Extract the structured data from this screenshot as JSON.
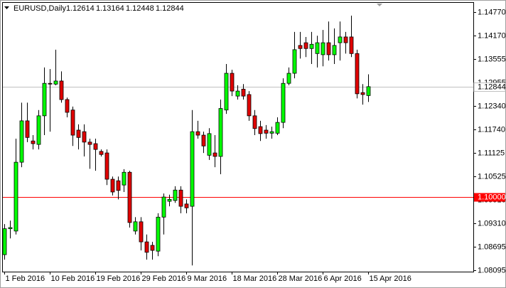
{
  "chart_data": {
    "type": "candlestick",
    "title": "EURUSD,Daily",
    "x": [
      "1 Feb 2016",
      null,
      null,
      null,
      null,
      null,
      null,
      null,
      "10 Feb 2016",
      null,
      null,
      null,
      null,
      null,
      null,
      null,
      "19 Feb 2016",
      null,
      null,
      null,
      null,
      null,
      null,
      null,
      "29 Feb 2016",
      null,
      null,
      null,
      null,
      null,
      null,
      null,
      "9 Mar 2016",
      null,
      null,
      null,
      null,
      null,
      null,
      null,
      "18 Mar 2016",
      null,
      null,
      null,
      null,
      null,
      null,
      null,
      "28 Mar 2016",
      null,
      null,
      null,
      null,
      null,
      null,
      null,
      "6 Apr 2016",
      null,
      null,
      null,
      null,
      null,
      null,
      null,
      "15 Apr 2016"
    ],
    "open": [
      1.085,
      1.0917,
      1.0911,
      1.1089,
      1.1196,
      1.1144,
      1.1135,
      1.1209,
      1.1293,
      1.1291,
      1.1299,
      1.1251,
      1.1224,
      1.1172,
      1.1168,
      1.1141,
      1.1137,
      1.1117,
      1.1113,
      1.1045,
      1.1041,
      1.103,
      1.1063,
      1.0911,
      1.0935,
      1.0883,
      1.0874,
      1.0859,
      1.0947,
      1.0988,
      1.099,
      1.1017,
      1.0981,
      1.0975,
      1.1168,
      1.1159,
      1.1107,
      1.1113,
      1.1104,
      1.1224,
      1.1319,
      1.126,
      1.1278,
      1.1264,
      1.1209,
      1.1181,
      1.1172,
      1.1164,
      1.1164,
      1.1192,
      1.1293,
      1.1319,
      1.1391,
      1.1398,
      1.1383,
      1.137,
      1.1367,
      1.1398,
      1.1367,
      1.1398,
      1.1413,
      1.1413,
      1.137,
      1.1269,
      1.12614
    ],
    "high": [
      1.0929,
      1.0938,
      1.115,
      1.1243,
      1.1243,
      1.1159,
      1.1224,
      1.1334,
      1.133,
      1.138,
      1.1324,
      1.1256,
      1.1233,
      1.1187,
      1.1187,
      1.115,
      1.115,
      1.1122,
      1.1122,
      1.1052,
      1.1052,
      1.1071,
      1.1067,
      1.0947,
      1.0947,
      1.0902,
      1.0883,
      1.0957,
      1.1008,
      1.1005,
      1.1027,
      1.1027,
      1.0993,
      1.1224,
      1.1196,
      1.1168,
      1.1177,
      1.1159,
      1.1251,
      1.1343,
      1.1328,
      1.1288,
      1.1291,
      1.1273,
      1.1224,
      1.1196,
      1.1185,
      1.1181,
      1.1205,
      1.1306,
      1.1334,
      1.1426,
      1.1426,
      1.1413,
      1.1426,
      1.1416,
      1.1431,
      1.1453,
      1.1435,
      1.1453,
      1.1426,
      1.1468,
      1.138,
      1.1291,
      1.13164
    ],
    "low": [
      1.0837,
      1.0892,
      1.0902,
      1.1076,
      1.1141,
      1.1122,
      1.1122,
      1.1159,
      1.1168,
      1.1288,
      1.1243,
      1.1205,
      1.1131,
      1.1122,
      1.1104,
      1.1072,
      1.1067,
      1.1104,
      1.103,
      1.1003,
      1.0993,
      1.1012,
      1.092,
      1.0902,
      1.0861,
      1.0837,
      1.0837,
      1.0846,
      1.0902,
      1.0975,
      1.0984,
      1.0957,
      1.0957,
      1.0822,
      1.115,
      1.1113,
      1.1095,
      1.1076,
      1.1058,
      1.1214,
      1.126,
      1.1251,
      1.1251,
      1.1196,
      1.1159,
      1.1144,
      1.115,
      1.115,
      1.1159,
      1.1177,
      1.1288,
      1.1306,
      1.1357,
      1.1361,
      1.1343,
      1.1334,
      1.1337,
      1.1352,
      1.1343,
      1.1352,
      1.137,
      1.1361,
      1.1254,
      1.1238,
      1.12448
    ],
    "close": [
      1.0917,
      1.092,
      1.1089,
      1.1196,
      1.1153,
      1.1137,
      1.1209,
      1.1293,
      1.1291,
      1.1299,
      1.1251,
      1.1218,
      1.1159,
      1.1153,
      1.1141,
      1.1135,
      1.1122,
      1.1109,
      1.1045,
      1.1012,
      1.1016,
      1.1063,
      1.0933,
      1.0935,
      1.0883,
      1.0856,
      1.0861,
      1.0947,
      1.0999,
      1.0993,
      1.1017,
      1.0975,
      1.0971,
      1.1168,
      1.1159,
      1.1131,
      1.1163,
      1.1104,
      1.1228,
      1.1319,
      1.1273,
      1.1273,
      1.126,
      1.1209,
      1.1176,
      1.1163,
      1.1164,
      1.1168,
      1.1192,
      1.1293,
      1.1319,
      1.138,
      1.1383,
      1.1383,
      1.1394,
      1.1398,
      1.1398,
      1.1367,
      1.1391,
      1.1413,
      1.1398,
      1.137,
      1.1266,
      1.1264,
      1.12844
    ],
    "up_color": "#00ff00",
    "down_color": "#e00000",
    "ylim": [
      1.0806,
      1.1503
    ],
    "yticks": [
      {
        "value": 1.1477,
        "label": "1.14770"
      },
      {
        "value": 1.1417,
        "label": "1.14170"
      },
      1.13555,
      1.12955,
      {
        "value": 1.1234,
        "label": "1.12340"
      },
      {
        "value": 1.1174,
        "label": "1.11740"
      },
      1.11125,
      1.10525,
      {
        "value": 1.0991,
        "label": "1.09910"
      },
      {
        "value": 1.0931,
        "label": "1.09310"
      },
      1.08695,
      1.08095
    ],
    "levels": [
      {
        "value": 1.1,
        "label": "1.10000",
        "color": "#ff0000"
      }
    ],
    "last_price_color": "#c0c0c0"
  }
}
